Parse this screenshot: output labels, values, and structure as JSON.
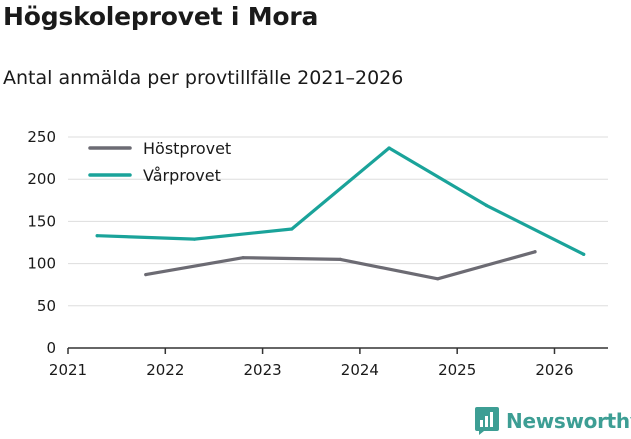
{
  "title": "Högskoleprovet i Mora",
  "subtitle": "Antal anmälda per provtillfälle 2021–2026",
  "brand": {
    "name": "Newsworthy",
    "color": "#3d9e94"
  },
  "colors": {
    "hostprovet": "#6c6b73",
    "varprovet": "#1aa39a",
    "grid": "#dddddd",
    "axis": "#333333"
  },
  "chart_data": {
    "type": "line",
    "title": "Högskoleprovet i Mora",
    "subtitle": "Antal anmälda per provtillfälle 2021–2026",
    "xlabel": "",
    "ylabel": "",
    "xlim": [
      2021,
      2026.55
    ],
    "ylim": [
      0,
      250
    ],
    "x_ticks": [
      "2021",
      "2022",
      "2023",
      "2024",
      "2025",
      "2026"
    ],
    "y_ticks": [
      "0",
      "50",
      "100",
      "150",
      "200",
      "250"
    ],
    "grid": true,
    "legend_position": "top-left",
    "series": [
      {
        "name": "Höstprovet",
        "color": "#6c6b73",
        "x": [
          2021.8,
          2022.8,
          2023.8,
          2024.8,
          2025.8
        ],
        "values": [
          87,
          107,
          105,
          82,
          114
        ]
      },
      {
        "name": "Vårprovet",
        "color": "#1aa39a",
        "x": [
          2021.3,
          2022.3,
          2023.3,
          2024.3,
          2025.3,
          2026.3
        ],
        "values": [
          133,
          129,
          141,
          237,
          169,
          111
        ]
      }
    ]
  }
}
